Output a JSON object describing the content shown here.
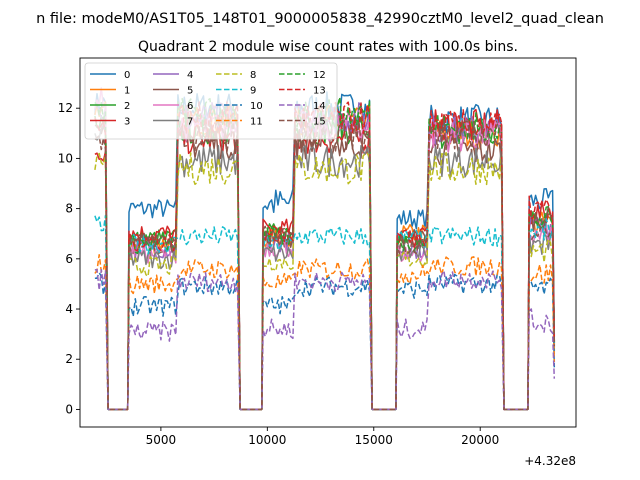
{
  "chart_data": {
    "type": "line",
    "suptitle": "n file: modeM0/AS1T05_148T01_9000005838_42990cztM0_level2_quad_clean",
    "title": "Quadrant 2 module wise count rates with 100.0s bins.",
    "xlabel": "",
    "ylabel": "",
    "x_offset_label": "+4.32e8",
    "xlim": [
      1200,
      24500
    ],
    "ylim": [
      -0.7,
      14.0
    ],
    "x_ticks": [
      5000,
      10000,
      15000,
      20000
    ],
    "x_tick_labels": [
      "5000",
      "10000",
      "15000",
      "20000"
    ],
    "y_ticks": [
      0,
      2,
      4,
      6,
      8,
      10,
      12
    ],
    "y_tick_labels": [
      "0",
      "2",
      "4",
      "6",
      "8",
      "10",
      "12"
    ],
    "legend_position": "top-left",
    "legend_columns": 4,
    "gaps": [
      [
        2400,
        3500
      ],
      [
        8600,
        9800
      ],
      [
        14800,
        16100
      ],
      [
        21000,
        22300
      ]
    ],
    "segments": [
      [
        1900,
        2400
      ],
      [
        3500,
        8600
      ],
      [
        9800,
        14800
      ],
      [
        16100,
        21000
      ],
      [
        22300,
        23400
      ]
    ],
    "series": [
      {
        "name": "0",
        "color": "#1f77b4",
        "dash": "solid",
        "levels": [
          12.2,
          8.0,
          12.0,
          7.6,
          11.5,
          8.3
        ]
      },
      {
        "name": "1",
        "color": "#ff7f0e",
        "dash": "solid",
        "levels": [
          12.0,
          6.6,
          11.5,
          7.0,
          11.0,
          7.4
        ]
      },
      {
        "name": "2",
        "color": "#2ca02c",
        "dash": "solid",
        "levels": [
          11.6,
          6.8,
          11.2,
          6.6,
          11.0,
          7.6
        ]
      },
      {
        "name": "3",
        "color": "#d62728",
        "dash": "solid",
        "levels": [
          10.3,
          7.0,
          10.8,
          6.9,
          11.3,
          7.8
        ]
      },
      {
        "name": "4",
        "color": "#9467bd",
        "dash": "solid",
        "levels": [
          11.9,
          6.4,
          11.6,
          6.4,
          11.1,
          7.3
        ]
      },
      {
        "name": "5",
        "color": "#8c564b",
        "dash": "solid",
        "levels": [
          11.3,
          6.6,
          10.6,
          6.8,
          10.3,
          7.6
        ]
      },
      {
        "name": "6",
        "color": "#e377c2",
        "dash": "solid",
        "levels": [
          12.4,
          6.2,
          11.3,
          6.2,
          10.9,
          6.9
        ]
      },
      {
        "name": "7",
        "color": "#7f7f7f",
        "dash": "solid",
        "levels": [
          10.9,
          6.0,
          9.9,
          6.3,
          9.9,
          6.6
        ]
      },
      {
        "name": "8",
        "color": "#bcbd22",
        "dash": "dashed",
        "levels": [
          9.9,
          5.7,
          9.6,
          6.0,
          9.6,
          6.3
        ]
      },
      {
        "name": "9",
        "color": "#17becf",
        "dash": "dashed",
        "levels": [
          7.3,
          6.6,
          6.9,
          6.8,
          6.9,
          7.1
        ]
      },
      {
        "name": "10",
        "color": "#1f77b4",
        "dash": "dashed",
        "levels": [
          5.0,
          4.1,
          4.9,
          4.8,
          5.0,
          4.8
        ]
      },
      {
        "name": "11",
        "color": "#ff7f0e",
        "dash": "dashed",
        "levels": [
          5.8,
          5.0,
          5.6,
          5.4,
          5.7,
          5.4
        ]
      },
      {
        "name": "12",
        "color": "#2ca02c",
        "dash": "dashed",
        "levels": [
          12.0,
          6.6,
          11.8,
          6.7,
          11.2,
          7.6
        ]
      },
      {
        "name": "13",
        "color": "#d62728",
        "dash": "dashed",
        "levels": [
          11.3,
          6.7,
          11.6,
          6.8,
          11.3,
          8.0
        ]
      },
      {
        "name": "14",
        "color": "#9467bd",
        "dash": "dashed",
        "levels": [
          5.2,
          3.1,
          5.1,
          3.2,
          5.2,
          3.5
        ]
      },
      {
        "name": "15",
        "color": "#8c564b",
        "dash": "dashed",
        "levels": [
          10.7,
          6.7,
          10.9,
          6.6,
          10.9,
          7.2
        ]
      }
    ]
  }
}
